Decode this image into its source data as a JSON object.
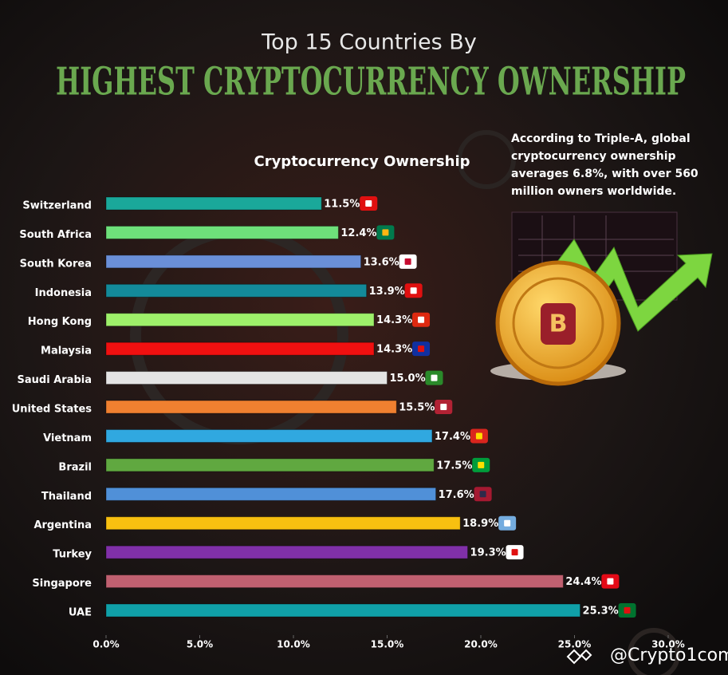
{
  "chart_data": {
    "type": "bar",
    "orientation": "horizontal",
    "pretitle": "Top 15 Countries By",
    "title": "HIGHEST CRYPTOCURRENCY OWNERSHIP",
    "subtitle": "Cryptocurrency Ownership",
    "annotation": "According to Triple-A, global cryptocurrency ownership averages 6.8%, with over 560 million owners worldwide.",
    "watermark": "@Crypto1com",
    "categories": [
      "Switzerland",
      "South Africa",
      "South Korea",
      "Indonesia",
      "Hong Kong",
      "Malaysia",
      "Saudi Arabia",
      "United States",
      "Vietnam",
      "Brazil",
      "Thailand",
      "Argentina",
      "Turkey",
      "Singapore",
      "UAE"
    ],
    "values": [
      11.5,
      12.4,
      13.6,
      13.9,
      14.3,
      14.3,
      15.0,
      15.5,
      17.4,
      17.5,
      17.6,
      18.9,
      19.3,
      24.4,
      25.3
    ],
    "value_labels": [
      "11.5%",
      "12.4%",
      "13.6%",
      "13.9%",
      "14.3%",
      "14.3%",
      "15.0%",
      "15.5%",
      "17.4%",
      "17.5%",
      "17.6%",
      "18.9%",
      "19.3%",
      "24.4%",
      "25.3%"
    ],
    "colors": [
      "#1aa89a",
      "#6ee07a",
      "#6a8fd8",
      "#138a9a",
      "#9ef06a",
      "#f01010",
      "#e4e4e4",
      "#f08030",
      "#30a8e0",
      "#60a840",
      "#5090d8",
      "#f8c010",
      "#8030a8",
      "#c06070",
      "#10a0a8"
    ],
    "xlim": [
      0,
      30
    ],
    "xticks": [
      {
        "value": 0,
        "label": "0.0%"
      },
      {
        "value": 5,
        "label": "5.0%"
      },
      {
        "value": 10,
        "label": "10.0%"
      },
      {
        "value": 15,
        "label": "15.0%"
      },
      {
        "value": 20,
        "label": "20.0%"
      },
      {
        "value": 25,
        "label": "25.0%"
      },
      {
        "value": 30,
        "label": "30.0%"
      }
    ]
  }
}
